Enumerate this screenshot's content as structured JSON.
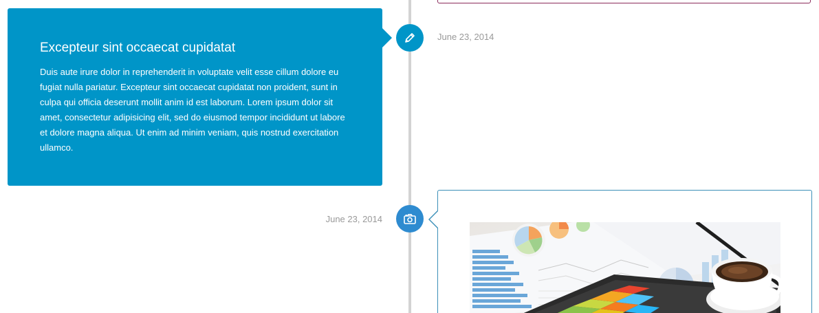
{
  "timeline": {
    "entries": [
      {
        "icon": "pencil-icon",
        "date": "June 23, 2014",
        "title": "Excepteur sint occaecat cupidatat",
        "body": "Duis aute irure dolor in reprehenderit in voluptate velit esse cillum dolore eu fugiat nulla pariatur. Excepteur sint occaecat cupidatat non proident, sunt in culpa qui officia deserunt mollit anim id est laborum. Lorem ipsum dolor sit amet, consectetur adipisicing elit, sed do eiusmod tempor incididunt ut labore et dolore magna aliqua. Ut enim ad minim veniam, quis nostrud exercitation ullamco.",
        "color": "#0095c8"
      },
      {
        "icon": "camera-icon",
        "date": "June 23, 2014",
        "image": "dashboard-tablet-photo",
        "color": "#2e8bd0"
      }
    ]
  },
  "colors": {
    "line": "#d3d3d3",
    "date_text": "#999999",
    "prev_card_border": "#8a2a5a",
    "image_card_border": "#3b8fb8"
  }
}
